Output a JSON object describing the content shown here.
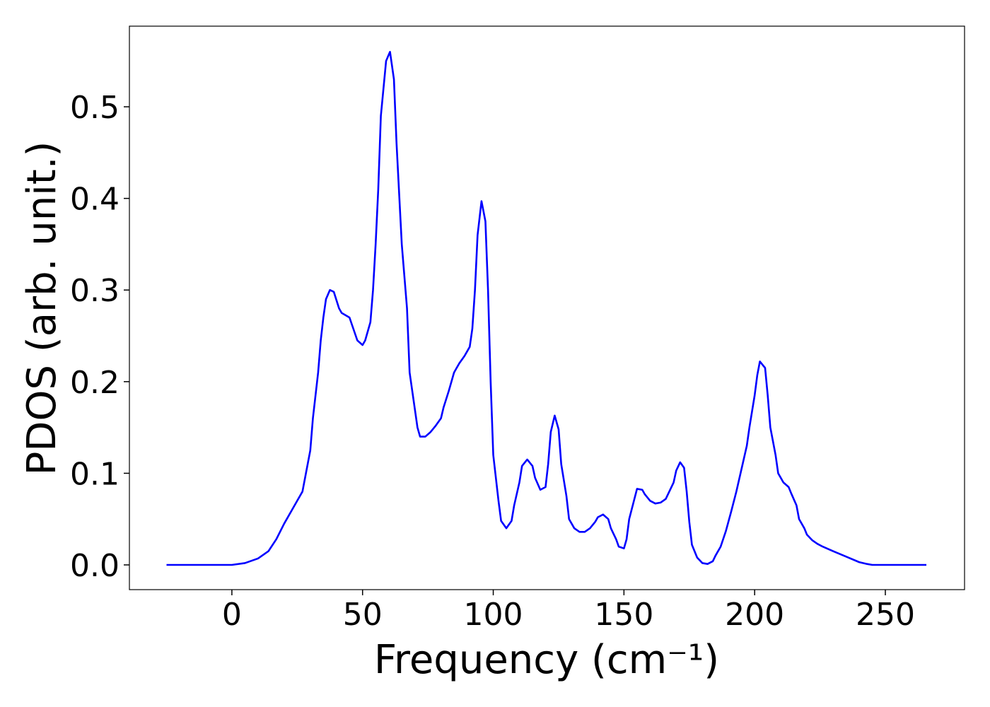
{
  "chart_data": {
    "type": "line",
    "xlabel": "Frequency (cm⁻¹)",
    "ylabel": "PDOS (arb. unit.)",
    "xlim": [
      -39.2,
      280.3
    ],
    "ylim": [
      -0.027,
      0.588
    ],
    "xticks": [
      0,
      50,
      100,
      150,
      200,
      250
    ],
    "yticks": [
      {
        "value": 0,
        "label": "0.0"
      },
      0.1,
      0.2,
      0.3,
      0.4,
      0.5
    ],
    "grid": false,
    "x": [
      -25,
      0,
      5,
      10,
      14,
      17,
      20,
      23,
      25,
      27,
      28,
      30,
      31,
      33,
      34,
      35,
      36,
      37.5,
      39,
      41,
      42,
      45,
      48,
      50,
      51,
      53,
      54,
      55,
      56,
      57,
      59,
      60.5,
      62,
      63,
      65,
      67,
      68,
      70,
      71,
      72,
      74,
      76,
      78,
      80,
      81,
      83,
      85,
      87,
      89,
      91,
      92,
      93,
      94,
      95.5,
      97,
      98,
      99,
      100,
      102,
      103,
      105,
      107,
      108,
      110,
      111,
      113,
      115,
      116,
      118,
      120,
      121,
      122,
      123.5,
      125,
      126,
      128,
      129,
      131,
      133,
      135,
      137,
      139,
      140,
      142,
      144,
      145,
      147,
      148,
      150,
      151,
      152,
      154,
      155,
      157,
      158,
      160,
      162,
      164,
      166,
      167,
      169,
      170,
      171.5,
      173,
      174,
      175,
      176,
      178,
      180,
      182,
      184,
      185,
      187,
      189,
      191,
      193,
      195,
      197,
      198,
      200,
      201,
      202,
      204,
      205,
      206,
      208,
      209,
      211,
      213,
      214,
      216,
      217,
      219,
      220,
      222,
      224,
      226,
      230,
      235,
      240,
      243,
      245,
      265.7
    ],
    "series": [
      {
        "name": "PDOS",
        "color": "#0000ff",
        "values": [
          0,
          0,
          0.002,
          0.007,
          0.015,
          0.028,
          0.045,
          0.06,
          0.07,
          0.08,
          0.095,
          0.125,
          0.16,
          0.21,
          0.245,
          0.27,
          0.29,
          0.3,
          0.298,
          0.28,
          0.275,
          0.27,
          0.245,
          0.24,
          0.245,
          0.265,
          0.3,
          0.35,
          0.41,
          0.49,
          0.55,
          0.56,
          0.53,
          0.46,
          0.35,
          0.28,
          0.21,
          0.17,
          0.15,
          0.14,
          0.14,
          0.145,
          0.152,
          0.16,
          0.172,
          0.19,
          0.21,
          0.22,
          0.228,
          0.238,
          0.258,
          0.3,
          0.36,
          0.397,
          0.375,
          0.3,
          0.2,
          0.12,
          0.07,
          0.048,
          0.04,
          0.048,
          0.065,
          0.09,
          0.108,
          0.115,
          0.108,
          0.095,
          0.082,
          0.085,
          0.11,
          0.145,
          0.163,
          0.148,
          0.11,
          0.075,
          0.05,
          0.04,
          0.036,
          0.036,
          0.04,
          0.047,
          0.052,
          0.055,
          0.05,
          0.04,
          0.028,
          0.02,
          0.018,
          0.028,
          0.05,
          0.072,
          0.083,
          0.082,
          0.077,
          0.07,
          0.067,
          0.068,
          0.072,
          0.078,
          0.09,
          0.103,
          0.112,
          0.106,
          0.08,
          0.047,
          0.022,
          0.008,
          0.002,
          0.001,
          0.004,
          0.01,
          0.02,
          0.037,
          0.058,
          0.08,
          0.105,
          0.13,
          0.15,
          0.185,
          0.207,
          0.222,
          0.215,
          0.185,
          0.15,
          0.12,
          0.1,
          0.09,
          0.085,
          0.078,
          0.065,
          0.05,
          0.04,
          0.033,
          0.027,
          0.023,
          0.02,
          0.015,
          0.009,
          0.003,
          0.001,
          0,
          0
        ]
      }
    ]
  }
}
